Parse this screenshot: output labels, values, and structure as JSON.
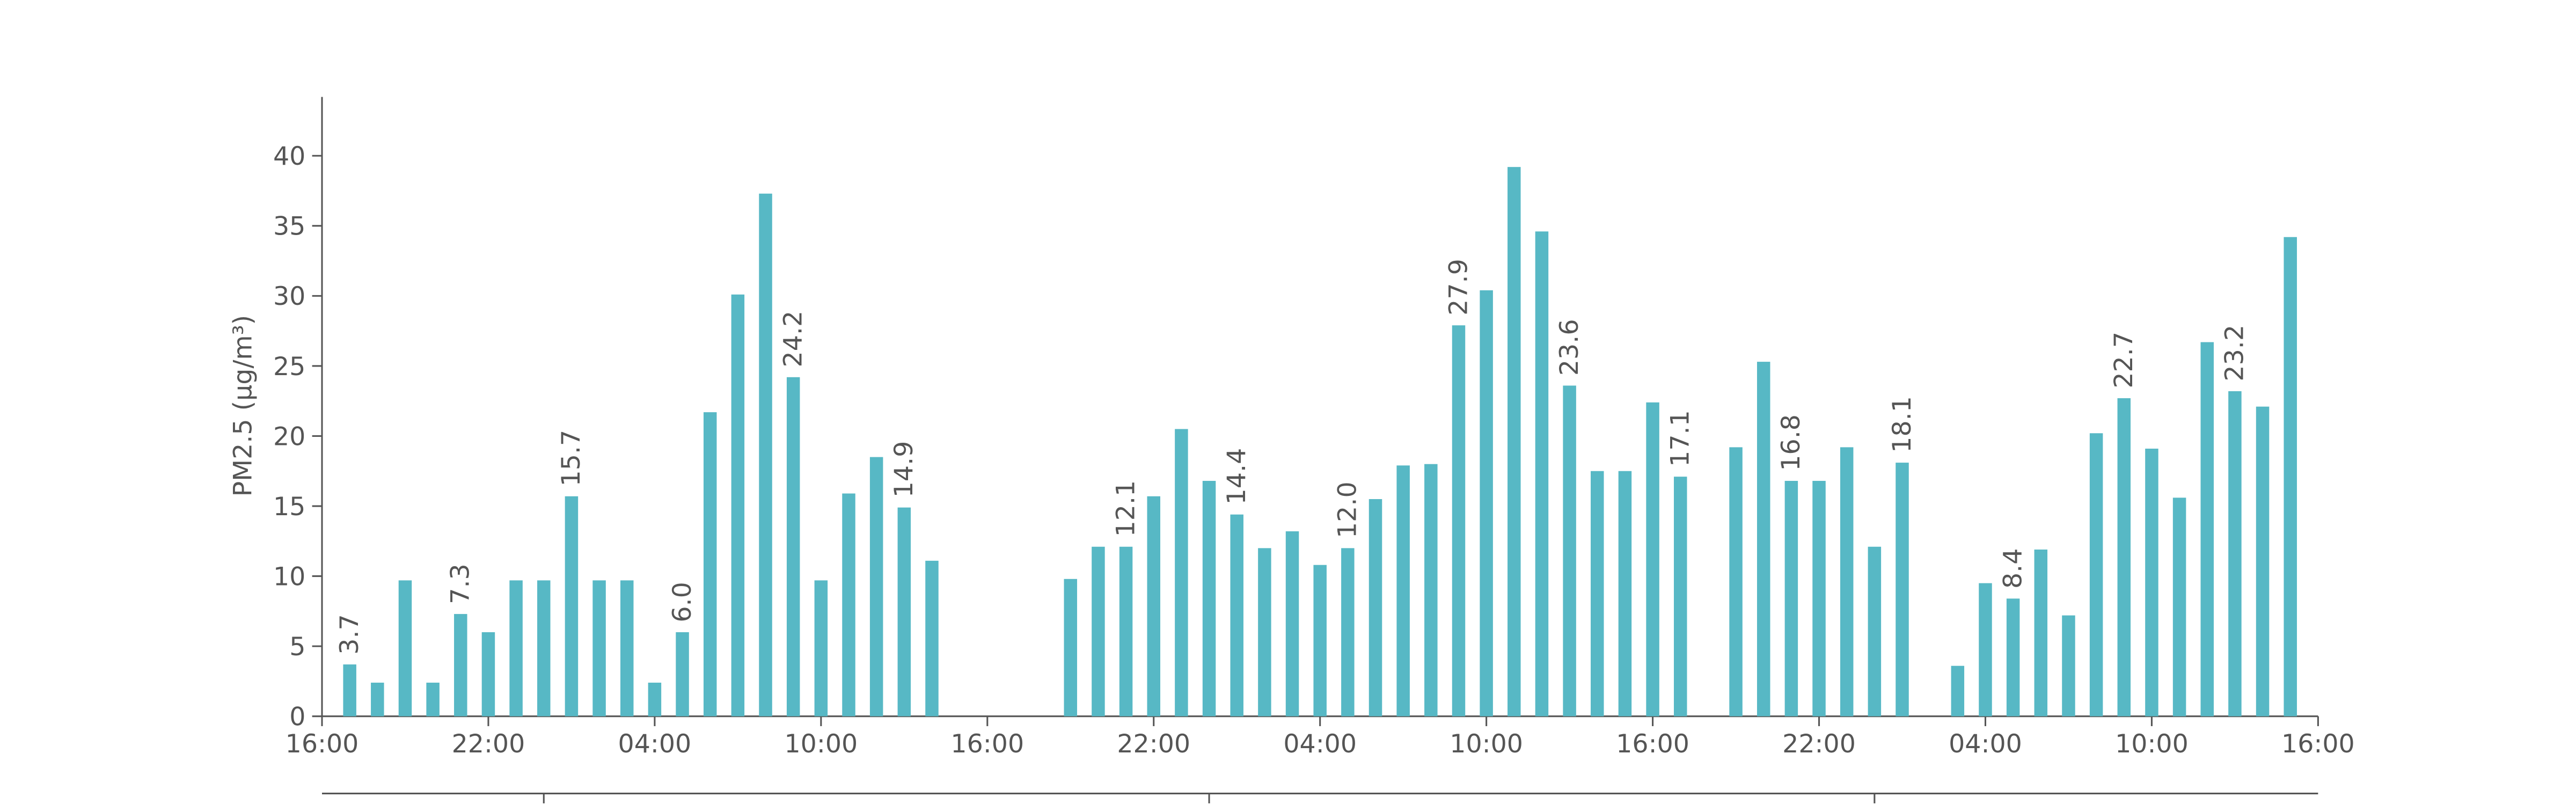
{
  "chart_data": {
    "type": "bar",
    "y_label": "PM2.5 (μg/m³)",
    "color": "#57b8c5",
    "x": [
      1,
      2,
      3,
      4,
      5,
      6,
      7,
      8,
      9,
      10,
      11,
      12,
      13,
      14,
      15,
      16,
      17,
      18,
      19,
      20,
      21,
      22,
      23,
      24,
      25,
      26,
      27,
      28,
      29,
      30,
      31,
      32,
      33,
      34,
      35,
      36,
      37,
      38,
      39,
      40,
      41,
      42,
      43,
      44,
      45,
      46,
      47,
      48,
      49,
      50,
      51,
      52,
      53,
      54,
      55,
      56,
      57,
      58,
      59,
      60,
      61,
      62,
      63,
      64,
      65,
      66,
      67,
      68,
      69,
      70,
      71
    ],
    "values": [
      3.7,
      2.4,
      9.7,
      2.4,
      7.3,
      6.0,
      9.7,
      9.7,
      15.7,
      9.7,
      9.7,
      2.4,
      6.0,
      21.7,
      30.1,
      37.3,
      24.2,
      9.7,
      15.9,
      18.5,
      14.9,
      11.1,
      null,
      null,
      null,
      null,
      9.8,
      12.1,
      12.1,
      15.7,
      20.5,
      16.8,
      14.4,
      12.0,
      13.2,
      10.8,
      12.0,
      15.5,
      17.9,
      18.0,
      27.9,
      30.4,
      39.2,
      34.6,
      23.6,
      17.5,
      17.5,
      22.4,
      17.1,
      null,
      19.2,
      25.3,
      16.8,
      16.8,
      19.2,
      12.1,
      18.1,
      null,
      3.6,
      9.5,
      8.4,
      11.9,
      7.2,
      20.2,
      22.7,
      19.1,
      15.6,
      26.7,
      23.2,
      22.1,
      34.2
    ],
    "value_labels": [
      "3.7",
      null,
      null,
      null,
      "7.3",
      null,
      null,
      null,
      "15.7",
      null,
      null,
      null,
      "6.0",
      null,
      null,
      null,
      "24.2",
      null,
      null,
      null,
      "14.9",
      null,
      null,
      null,
      null,
      null,
      null,
      null,
      "12.1",
      null,
      null,
      null,
      "14.4",
      null,
      null,
      null,
      "12.0",
      null,
      null,
      null,
      "27.9",
      null,
      null,
      null,
      "23.6",
      null,
      null,
      null,
      "17.1",
      null,
      null,
      null,
      "16.8",
      null,
      null,
      null,
      "18.1",
      null,
      null,
      null,
      "8.4",
      null,
      null,
      null,
      "22.7",
      null,
      null,
      null,
      "23.2",
      null,
      null
    ],
    "xlim": [
      0,
      72
    ],
    "xticks": [
      {
        "value": 0,
        "label": "16:00"
      },
      {
        "value": 6,
        "label": "22:00"
      },
      {
        "value": 12,
        "label": "04:00"
      },
      {
        "value": 18,
        "label": "10:00"
      },
      {
        "value": 24,
        "label": "16:00"
      },
      {
        "value": 30,
        "label": "22:00"
      },
      {
        "value": 36,
        "label": "04:00"
      },
      {
        "value": 42,
        "label": "10:00"
      },
      {
        "value": 48,
        "label": "16:00"
      },
      {
        "value": 54,
        "label": "22:00"
      },
      {
        "value": 60,
        "label": "04:00"
      },
      {
        "value": 66,
        "label": "10:00"
      },
      {
        "value": 72,
        "label": "16:00"
      }
    ],
    "ylim": [
      0,
      44.2
    ],
    "yticks": [
      0,
      5,
      10,
      15,
      20,
      25,
      30,
      35,
      40
    ]
  }
}
